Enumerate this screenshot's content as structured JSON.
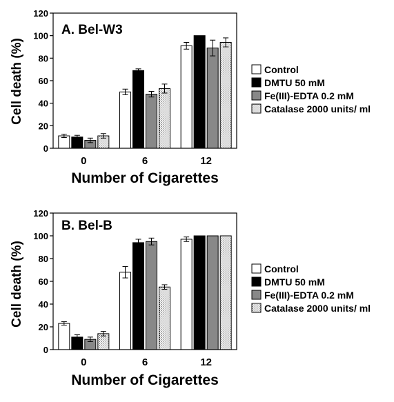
{
  "chart_data": [
    {
      "type": "bar",
      "title": "A. Bel-W3",
      "xlabel": "Number of Cigarettes",
      "ylabel": "Cell death (%)",
      "ylim": [
        0,
        120
      ],
      "yticks": [
        0,
        20,
        40,
        60,
        80,
        100,
        120
      ],
      "categories": [
        "0",
        "6",
        "12"
      ],
      "legend_position": "right",
      "series": [
        {
          "name": "Control",
          "values": [
            11,
            50,
            91
          ],
          "errors": [
            1.5,
            2.5,
            3
          ],
          "fill": "white"
        },
        {
          "name": "DMTU 50 mM",
          "values": [
            10,
            69,
            100
          ],
          "errors": [
            1.5,
            1.5,
            0
          ],
          "fill": "black"
        },
        {
          "name": "Fe(III)-EDTA 0.2 mM",
          "values": [
            7,
            48,
            89
          ],
          "errors": [
            2,
            2.5,
            7
          ],
          "fill": "gray"
        },
        {
          "name": "Catalase 2000 units/ ml",
          "values": [
            11,
            53,
            94
          ],
          "errors": [
            2,
            4,
            4
          ],
          "fill": "dotted"
        }
      ]
    },
    {
      "type": "bar",
      "title": "B. Bel-B",
      "xlabel": "Number of Cigarettes",
      "ylabel": "Cell death (%)",
      "ylim": [
        0,
        120
      ],
      "yticks": [
        0,
        20,
        40,
        60,
        80,
        100,
        120
      ],
      "categories": [
        "0",
        "6",
        "12"
      ],
      "legend_position": "right",
      "series": [
        {
          "name": "Control",
          "values": [
            23,
            68,
            97
          ],
          "errors": [
            1.5,
            5,
            2
          ],
          "fill": "white"
        },
        {
          "name": "DMTU 50 mM",
          "values": [
            11,
            94,
            100
          ],
          "errors": [
            2,
            3,
            0
          ],
          "fill": "black"
        },
        {
          "name": "Fe(III)-EDTA 0.2 mM",
          "values": [
            9,
            95,
            100
          ],
          "errors": [
            2,
            3,
            0
          ],
          "fill": "gray"
        },
        {
          "name": "Catalase 2000 units/ ml",
          "values": [
            14,
            55,
            100
          ],
          "errors": [
            2,
            2,
            0
          ],
          "fill": "dotted"
        }
      ]
    }
  ]
}
